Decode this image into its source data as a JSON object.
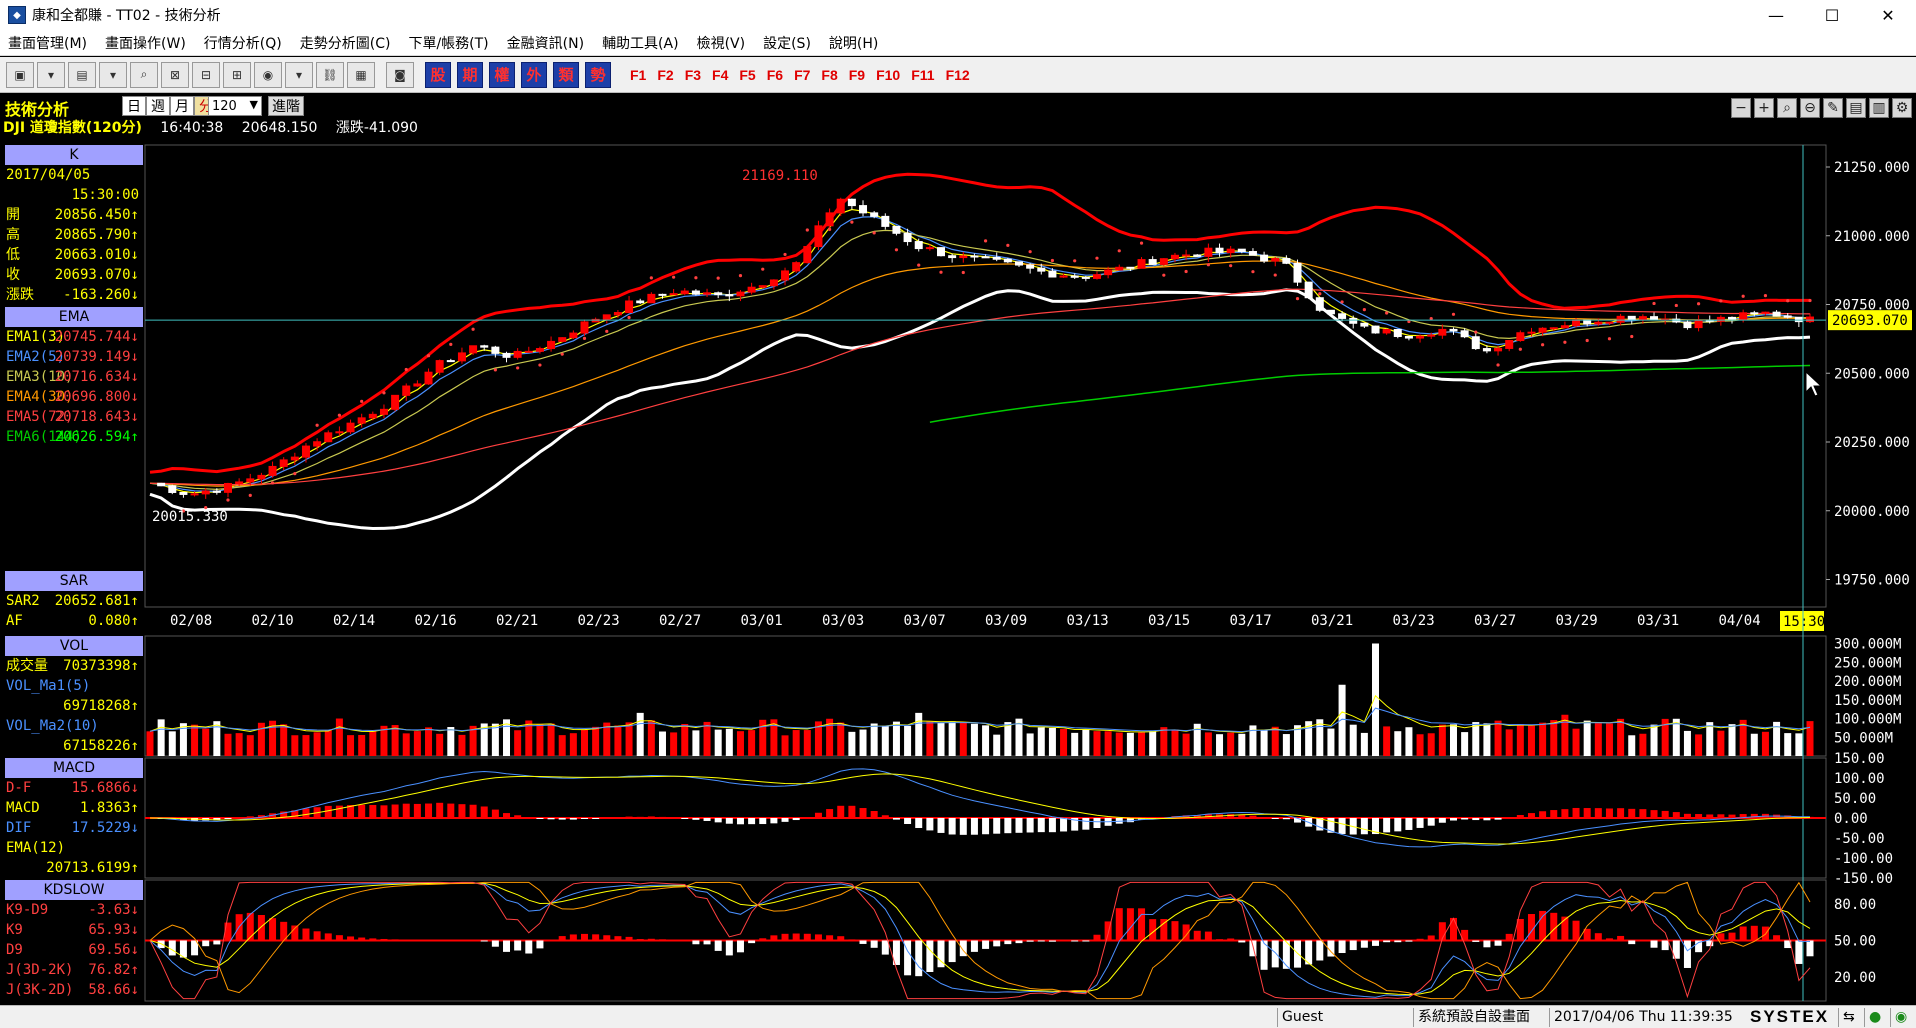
{
  "window": {
    "title": "康和全都賺 - TT02 - 技術分析",
    "minimize": "—",
    "maximize": "☐",
    "close": "✕"
  },
  "menu": [
    "畫面管理(M)",
    "畫面操作(W)",
    "行情分析(Q)",
    "走勢分析圖(C)",
    "下單/帳務(T)",
    "金融資訊(N)",
    "輔助工具(A)",
    "檢視(V)",
    "設定(S)",
    "說明(H)"
  ],
  "toolbar": {
    "cn_buttons": [
      "股",
      "期",
      "權",
      "外",
      "類",
      "勢"
    ],
    "f_keys": [
      "F1",
      "F2",
      "F3",
      "F4",
      "F5",
      "F6",
      "F7",
      "F8",
      "F9",
      "F10",
      "F11",
      "F12"
    ]
  },
  "info": {
    "title": "技術分析",
    "periods": [
      "日",
      "週",
      "月",
      "分"
    ],
    "active_period": "分",
    "count": "120",
    "advanced": "進階",
    "symbol": "DJI  道瓊指數(120分)",
    "time": "16:40:38",
    "price": "20648.150",
    "change": "漲跌-41.090"
  },
  "colors": {
    "up": "#ff0000",
    "down": "#ffffff",
    "ema1": "#ffff00",
    "ema2": "#4a90ff",
    "ema3": "#c8c850",
    "ema4": "#ff9900",
    "ema5": "#ff4040",
    "ema6": "#00cc00",
    "boll_upper": "#ff0000",
    "boll_lower": "#ffffff",
    "sar": "#ff4040"
  },
  "side_k": {
    "header": "K",
    "date": "2017/04/05",
    "time": "15:30:00",
    "rows": [
      {
        "label": "開",
        "value": "20856.450",
        "arrow": "↑"
      },
      {
        "label": "高",
        "value": "20865.790",
        "arrow": "↑"
      },
      {
        "label": "低",
        "value": "20663.010",
        "arrow": "↓"
      },
      {
        "label": "收",
        "value": "20693.070",
        "arrow": "↓"
      },
      {
        "label": "漲跌",
        "value": "-163.260",
        "arrow": "↓"
      }
    ]
  },
  "side_ema": {
    "header": "EMA",
    "rows": [
      {
        "label": "EMA1(3)",
        "value": "20745.744",
        "arrow": "↓",
        "color": "#ffff00"
      },
      {
        "label": "EMA2(5)",
        "value": "20739.149",
        "arrow": "↓",
        "color": "#4a90ff"
      },
      {
        "label": "EMA3(10)",
        "value": "20716.634",
        "arrow": "↓",
        "color": "#c8c850"
      },
      {
        "label": "EMA4(30)",
        "value": "20696.800",
        "arrow": "↓",
        "color": "#ff9900"
      },
      {
        "label": "EMA5(72)",
        "value": "20718.643",
        "arrow": "↓",
        "color": "#ff4040"
      },
      {
        "label": "EMA6(144)",
        "value": "20626.594",
        "arrow": "↑",
        "color": "#00cc00"
      }
    ]
  },
  "side_sar": {
    "header": "SAR",
    "rows": [
      {
        "label": "SAR2",
        "value": "20652.681",
        "arrow": "↑"
      },
      {
        "label": "AF",
        "value": "0.080",
        "arrow": "↑"
      }
    ]
  },
  "side_vol": {
    "header": "VOL",
    "rows": [
      {
        "label": "成交量",
        "value": "70373398",
        "arrow": "↑"
      },
      {
        "label": "VOL_Ma1(5)",
        "value": "",
        "arrow": ""
      },
      {
        "label": "",
        "value": "69718268",
        "arrow": "↑"
      },
      {
        "label": "VOL_Ma2(10)",
        "value": "",
        "arrow": ""
      },
      {
        "label": "",
        "value": "67158226",
        "arrow": "↑"
      }
    ]
  },
  "side_macd": {
    "header": "MACD",
    "rows": [
      {
        "label": "D-F",
        "value": "15.6866",
        "arrow": "↓"
      },
      {
        "label": "MACD",
        "value": "1.8363",
        "arrow": "↑"
      },
      {
        "label": "DIF",
        "value": "17.5229",
        "arrow": "↓"
      },
      {
        "label": "EMA(12)",
        "value": "",
        "arrow": ""
      },
      {
        "label": "",
        "value": "20713.6199",
        "arrow": "↑"
      }
    ]
  },
  "side_kd": {
    "header": "KDSLOW",
    "rows": [
      {
        "label": "K9-D9",
        "value": "-3.63",
        "arrow": "↓"
      },
      {
        "label": "K9",
        "value": "65.93",
        "arrow": "↓"
      },
      {
        "label": "D9",
        "value": "69.56",
        "arrow": "↓"
      },
      {
        "label": "J(3D-2K)",
        "value": "76.82",
        "arrow": "↑"
      },
      {
        "label": "J(3K-2D)",
        "value": "58.66",
        "arrow": "↓"
      }
    ]
  },
  "chart_data": [
    {
      "type": "candlestick",
      "title": "DJI 道瓊指數(120分)",
      "x_dates": [
        "02/08",
        "02/10",
        "02/14",
        "02/16",
        "02/21",
        "02/23",
        "02/27",
        "03/01",
        "03/03",
        "03/07",
        "03/09",
        "03/13",
        "03/15",
        "03/17",
        "03/21",
        "03/23",
        "03/27",
        "03/29",
        "03/31",
        "04/04"
      ],
      "cursor_label": "15:30",
      "y_ticks": [
        "21250.000",
        "21000.000",
        "20750.000",
        "20500.000",
        "20250.000",
        "20000.000",
        "19750.000"
      ],
      "ylim": [
        19650,
        21330
      ],
      "annotations": [
        {
          "text": "21169.110",
          "x": "03/01",
          "y": 21169.11
        },
        {
          "text": "20015.330",
          "x": "02/08",
          "y": 20015.33
        }
      ],
      "last_price_label": "20693.070",
      "close_series": [
        20100,
        20060,
        20090,
        20150,
        20250,
        20320,
        20400,
        20520,
        20600,
        20560,
        20620,
        20700,
        20760,
        20800,
        20780,
        20820,
        20900,
        21140,
        21050,
        20960,
        20920,
        20900,
        20870,
        20850,
        20880,
        20920,
        20940,
        20940,
        20900,
        20720,
        20660,
        20640,
        20660,
        20580,
        20660,
        20680,
        20700,
        20710,
        20680,
        20700,
        20720,
        20693
      ]
    },
    {
      "type": "bar",
      "title": "VOL",
      "y_ticks": [
        "300.000M",
        "250.000M",
        "200.000M",
        "150.000M",
        "100.000M",
        "50.000M"
      ],
      "ylim": [
        0,
        320
      ]
    },
    {
      "type": "line",
      "title": "MACD",
      "y_ticks": [
        "150.00",
        "100.00",
        "50.00",
        "0.00",
        "-50.00",
        "-100.00",
        "-150.00"
      ],
      "ylim": [
        -150,
        150
      ]
    },
    {
      "type": "line",
      "title": "KDSLOW",
      "y_ticks": [
        "80.00",
        "50.00",
        "20.00"
      ],
      "ylim": [
        0,
        100
      ]
    }
  ],
  "status": {
    "user": "Guest",
    "layout": "系統預設自設畫面",
    "datetime": "2017/04/06 Thu 11:39:35",
    "logo": "SYSTEX"
  }
}
